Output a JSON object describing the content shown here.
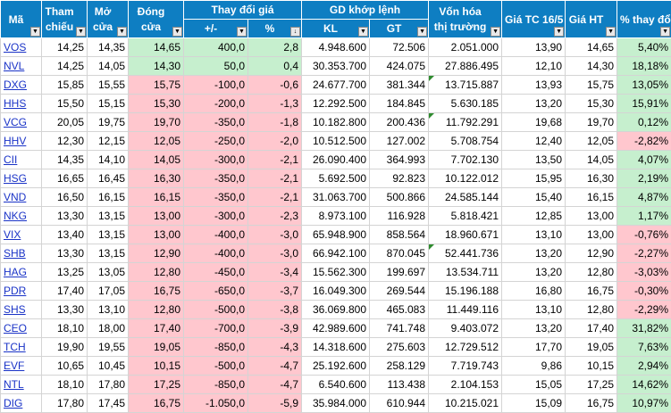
{
  "headers": {
    "ma": "Mã",
    "tham_chieu": "Tham chiếu",
    "mo_cua": "Mở cửa",
    "dong_cua": "Đóng cửa",
    "thay_doi_gia": "Thay đổi giá",
    "thay_doi_abs": "+/-",
    "thay_doi_pct": "%",
    "gd_khop_lenh": "GD khớp lệnh",
    "kl": "KL",
    "gt": "GT",
    "von_hoa": "Vốn hóa thị trường",
    "gia_tc": "Giá TC 16/5",
    "gia_ht": "Giá HT",
    "pct_thay_doi": "% thay đổi"
  },
  "rows": [
    {
      "code": "VOS",
      "ref": "14,25",
      "open": "14,35",
      "close": "14,65",
      "chg": "400,0",
      "pct": "2,8",
      "kl": "4.948.600",
      "gt": "72.506",
      "cap": "2.051.000",
      "tc": "13,90",
      "ht": "14,65",
      "pchg": "5,40%",
      "dir": "up",
      "pdir": "up"
    },
    {
      "code": "NVL",
      "ref": "14,25",
      "open": "14,05",
      "close": "14,30",
      "chg": "50,0",
      "pct": "0,4",
      "kl": "30.353.700",
      "gt": "424.075",
      "cap": "27.886.495",
      "tc": "12,10",
      "ht": "14,30",
      "pchg": "18,18%",
      "dir": "up",
      "pdir": "up"
    },
    {
      "code": "DXG",
      "ref": "15,85",
      "open": "15,55",
      "close": "15,75",
      "chg": "-100,0",
      "pct": "-0,6",
      "kl": "24.677.700",
      "gt": "381.344",
      "cap": "13.715.887",
      "tc": "13,93",
      "ht": "15,75",
      "pchg": "13,05%",
      "dir": "down",
      "pdir": "up"
    },
    {
      "code": "HHS",
      "ref": "15,50",
      "open": "15,15",
      "close": "15,30",
      "chg": "-200,0",
      "pct": "-1,3",
      "kl": "12.292.500",
      "gt": "184.845",
      "cap": "5.630.185",
      "tc": "13,20",
      "ht": "15,30",
      "pchg": "15,91%",
      "dir": "down",
      "pdir": "up"
    },
    {
      "code": "VCG",
      "ref": "20,05",
      "open": "19,75",
      "close": "19,70",
      "chg": "-350,0",
      "pct": "-1,8",
      "kl": "10.182.800",
      "gt": "200.436",
      "cap": "11.792.291",
      "tc": "19,68",
      "ht": "19,70",
      "pchg": "0,12%",
      "dir": "down",
      "pdir": "up"
    },
    {
      "code": "HHV",
      "ref": "12,30",
      "open": "12,15",
      "close": "12,05",
      "chg": "-250,0",
      "pct": "-2,0",
      "kl": "10.512.500",
      "gt": "127.002",
      "cap": "5.708.754",
      "tc": "12,40",
      "ht": "12,05",
      "pchg": "-2,82%",
      "dir": "down",
      "pdir": "down"
    },
    {
      "code": "CII",
      "ref": "14,35",
      "open": "14,10",
      "close": "14,05",
      "chg": "-300,0",
      "pct": "-2,1",
      "kl": "26.090.400",
      "gt": "364.993",
      "cap": "7.702.130",
      "tc": "13,50",
      "ht": "14,05",
      "pchg": "4,07%",
      "dir": "down",
      "pdir": "up"
    },
    {
      "code": "HSG",
      "ref": "16,65",
      "open": "16,45",
      "close": "16,30",
      "chg": "-350,0",
      "pct": "-2,1",
      "kl": "5.692.500",
      "gt": "92.823",
      "cap": "10.122.012",
      "tc": "15,95",
      "ht": "16,30",
      "pchg": "2,19%",
      "dir": "down",
      "pdir": "up"
    },
    {
      "code": "VND",
      "ref": "16,50",
      "open": "16,15",
      "close": "16,15",
      "chg": "-350,0",
      "pct": "-2,1",
      "kl": "31.063.700",
      "gt": "500.866",
      "cap": "24.585.144",
      "tc": "15,40",
      "ht": "16,15",
      "pchg": "4,87%",
      "dir": "down",
      "pdir": "up"
    },
    {
      "code": "NKG",
      "ref": "13,30",
      "open": "13,15",
      "close": "13,00",
      "chg": "-300,0",
      "pct": "-2,3",
      "kl": "8.973.100",
      "gt": "116.928",
      "cap": "5.818.421",
      "tc": "12,85",
      "ht": "13,00",
      "pchg": "1,17%",
      "dir": "down",
      "pdir": "up"
    },
    {
      "code": "VIX",
      "ref": "13,40",
      "open": "13,15",
      "close": "13,00",
      "chg": "-400,0",
      "pct": "-3,0",
      "kl": "65.948.900",
      "gt": "858.564",
      "cap": "18.960.671",
      "tc": "13,10",
      "ht": "13,00",
      "pchg": "-0,76%",
      "dir": "down",
      "pdir": "down"
    },
    {
      "code": "SHB",
      "ref": "13,30",
      "open": "13,15",
      "close": "12,90",
      "chg": "-400,0",
      "pct": "-3,0",
      "kl": "66.942.100",
      "gt": "870.045",
      "cap": "52.441.736",
      "tc": "13,20",
      "ht": "12,90",
      "pchg": "-2,27%",
      "dir": "down",
      "pdir": "down"
    },
    {
      "code": "HAG",
      "ref": "13,25",
      "open": "13,05",
      "close": "12,80",
      "chg": "-450,0",
      "pct": "-3,4",
      "kl": "15.562.300",
      "gt": "199.697",
      "cap": "13.534.711",
      "tc": "13,20",
      "ht": "12,80",
      "pchg": "-3,03%",
      "dir": "down",
      "pdir": "down"
    },
    {
      "code": "PDR",
      "ref": "17,40",
      "open": "17,05",
      "close": "16,75",
      "chg": "-650,0",
      "pct": "-3,7",
      "kl": "16.049.300",
      "gt": "269.544",
      "cap": "15.196.188",
      "tc": "16,80",
      "ht": "16,75",
      "pchg": "-0,30%",
      "dir": "down",
      "pdir": "down"
    },
    {
      "code": "SHS",
      "ref": "13,30",
      "open": "13,10",
      "close": "12,80",
      "chg": "-500,0",
      "pct": "-3,8",
      "kl": "36.069.800",
      "gt": "465.083",
      "cap": "11.449.116",
      "tc": "13,10",
      "ht": "12,80",
      "pchg": "-2,29%",
      "dir": "down",
      "pdir": "down"
    },
    {
      "code": "CEO",
      "ref": "18,10",
      "open": "18,00",
      "close": "17,40",
      "chg": "-700,0",
      "pct": "-3,9",
      "kl": "42.989.600",
      "gt": "741.748",
      "cap": "9.403.072",
      "tc": "13,20",
      "ht": "17,40",
      "pchg": "31,82%",
      "dir": "down",
      "pdir": "up"
    },
    {
      "code": "TCH",
      "ref": "19,90",
      "open": "19,55",
      "close": "19,05",
      "chg": "-850,0",
      "pct": "-4,3",
      "kl": "14.318.600",
      "gt": "275.603",
      "cap": "12.729.512",
      "tc": "17,70",
      "ht": "19,05",
      "pchg": "7,63%",
      "dir": "down",
      "pdir": "up"
    },
    {
      "code": "EVF",
      "ref": "10,65",
      "open": "10,45",
      "close": "10,15",
      "chg": "-500,0",
      "pct": "-4,7",
      "kl": "25.192.600",
      "gt": "258.129",
      "cap": "7.719.743",
      "tc": "9,86",
      "ht": "10,15",
      "pchg": "2,94%",
      "dir": "down",
      "pdir": "up"
    },
    {
      "code": "NTL",
      "ref": "18,10",
      "open": "17,80",
      "close": "17,25",
      "chg": "-850,0",
      "pct": "-4,7",
      "kl": "6.540.600",
      "gt": "113.438",
      "cap": "2.104.153",
      "tc": "15,05",
      "ht": "17,25",
      "pchg": "14,62%",
      "dir": "down",
      "pdir": "up"
    },
    {
      "code": "DIG",
      "ref": "17,80",
      "open": "17,45",
      "close": "16,75",
      "chg": "-1.050,0",
      "pct": "-5,9",
      "kl": "35.984.000",
      "gt": "610.944",
      "cap": "10.215.021",
      "tc": "15,09",
      "ht": "16,75",
      "pchg": "10,97%",
      "dir": "down",
      "pdir": "up"
    }
  ],
  "colors": {
    "header": "#0e7ec2",
    "up": "#c6efce",
    "down": "#ffc7ce",
    "link": "#1a33c7"
  }
}
